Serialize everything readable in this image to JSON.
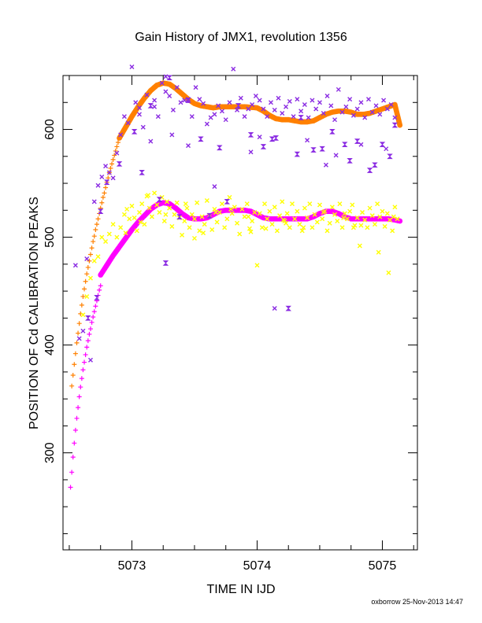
{
  "chart_data": {
    "type": "scatter",
    "title": "Gain History of JMX1, revolution 1356",
    "xlabel": "TIME IN IJD",
    "ylabel": "POSITION OF Cd CALIBRATION PEAKS",
    "footer": "oxborrow 25-Nov-2013 14:47",
    "xlim": [
      5072.45,
      5075.28
    ],
    "ylim": [
      210,
      650
    ],
    "x_ticks": [
      5073,
      5074,
      5075
    ],
    "x_tick_labels": [
      "5073",
      "5074",
      "5075"
    ],
    "y_ticks": [
      300,
      400,
      500,
      600
    ],
    "y_tick_labels": [
      "300",
      "400",
      "500",
      "600"
    ],
    "grid": false,
    "legend": "none",
    "series": [
      {
        "color": "#ff8000",
        "marker": "plus",
        "x": [
          5072.52,
          5072.53,
          5072.54,
          5072.55,
          5072.56,
          5072.57,
          5072.58,
          5072.59,
          5072.6,
          5072.61,
          5072.62,
          5072.63,
          5072.64,
          5072.65,
          5072.66,
          5072.67,
          5072.68,
          5072.69,
          5072.7,
          5072.71,
          5072.72,
          5072.73,
          5072.74,
          5072.75,
          5072.76,
          5072.77,
          5072.78,
          5072.79,
          5072.8,
          5072.81,
          5072.82,
          5072.83,
          5072.84,
          5072.85,
          5072.86,
          5072.87,
          5072.88,
          5072.89,
          5072.9
        ],
        "values": [
          362,
          372,
          382,
          392,
          402,
          411,
          420,
          429,
          437,
          445,
          452,
          459,
          466,
          472,
          478,
          484,
          490,
          496,
          501,
          507,
          512,
          517,
          522,
          527,
          532,
          537,
          541,
          546,
          551,
          555,
          560,
          564,
          568,
          572,
          576,
          580,
          584,
          588,
          592
        ]
      },
      {
        "color": "#ff8000",
        "marker": "dot",
        "x": [
          5072.9,
          5072.95,
          5073.0,
          5073.05,
          5073.1,
          5073.15,
          5073.2,
          5073.25,
          5073.3,
          5073.35,
          5073.4,
          5073.45,
          5073.5,
          5073.55,
          5073.6,
          5073.65,
          5073.7,
          5073.8,
          5073.9,
          5074.0,
          5074.05,
          5074.1,
          5074.15,
          5074.2,
          5074.25,
          5074.3,
          5074.35,
          5074.4,
          5074.45,
          5074.5,
          5074.55,
          5074.6,
          5074.65,
          5074.7,
          5074.75,
          5074.8,
          5074.85,
          5074.9,
          5074.95,
          5075.0,
          5075.05,
          5075.1,
          5075.14
        ],
        "values": [
          592,
          602,
          612,
          621,
          629,
          636,
          641,
          643,
          642,
          638,
          633,
          628,
          624,
          622,
          621,
          620,
          621,
          621,
          621,
          620,
          617,
          613,
          610,
          609,
          609,
          608,
          607,
          607,
          608,
          611,
          614,
          616,
          617,
          617,
          616,
          614,
          614,
          615,
          617,
          619,
          621,
          623,
          604
        ]
      },
      {
        "color": "#ff00ff",
        "marker": "plus",
        "x": [
          5072.51,
          5072.52,
          5072.53,
          5072.54,
          5072.55,
          5072.56,
          5072.57,
          5072.58,
          5072.59,
          5072.6,
          5072.61,
          5072.62,
          5072.63,
          5072.64,
          5072.65,
          5072.66,
          5072.67,
          5072.68,
          5072.69,
          5072.7,
          5072.71,
          5072.72,
          5072.73,
          5072.74,
          5072.75
        ],
        "values": [
          268,
          282,
          296,
          309,
          321,
          332,
          342,
          352,
          361,
          369,
          377,
          384,
          391,
          398,
          404,
          410,
          415,
          421,
          426,
          431,
          436,
          441,
          446,
          451,
          455
        ]
      },
      {
        "color": "#ff00ff",
        "marker": "dot",
        "x": [
          5072.75,
          5072.8,
          5072.85,
          5072.9,
          5072.95,
          5073.0,
          5073.05,
          5073.1,
          5073.15,
          5073.2,
          5073.25,
          5073.3,
          5073.35,
          5073.4,
          5073.45,
          5073.5,
          5073.55,
          5073.6,
          5073.65,
          5073.7,
          5073.75,
          5073.8,
          5073.85,
          5073.9,
          5073.95,
          5074.0,
          5074.05,
          5074.1,
          5074.15,
          5074.2,
          5074.25,
          5074.3,
          5074.35,
          5074.4,
          5074.45,
          5074.5,
          5074.55,
          5074.6,
          5074.65,
          5074.7,
          5074.75,
          5074.8,
          5074.85,
          5074.9,
          5074.95,
          5075.0,
          5075.05,
          5075.1,
          5075.14
        ],
        "values": [
          465,
          474,
          483,
          491,
          499,
          507,
          514,
          520,
          526,
          530,
          532,
          531,
          527,
          522,
          518,
          517,
          517,
          518,
          521,
          524,
          525,
          525,
          525,
          525,
          524,
          521,
          518,
          517,
          517,
          517,
          517,
          517,
          517,
          517,
          519,
          522,
          524,
          524,
          522,
          519,
          517,
          517,
          517,
          517,
          517,
          517,
          517,
          516,
          515
        ]
      },
      {
        "color": "#ffff00",
        "marker": "cross",
        "x": [
          5072.61,
          5072.64,
          5072.67,
          5072.7,
          5072.73,
          5072.76,
          5072.79,
          5072.82,
          5072.85,
          5072.88,
          5072.91,
          5072.94,
          5072.96,
          5072.98,
          5073.0,
          5073.02,
          5073.04,
          5073.06,
          5073.08,
          5073.1,
          5073.12,
          5073.14,
          5073.16,
          5073.18,
          5073.2,
          5073.22,
          5073.24,
          5073.26,
          5073.28,
          5073.3,
          5073.32,
          5073.34,
          5073.36,
          5073.38,
          5073.4,
          5073.42,
          5073.44,
          5073.46,
          5073.48,
          5073.5,
          5073.52,
          5073.54,
          5073.56,
          5073.58,
          5073.6,
          5073.62,
          5073.64,
          5073.66,
          5073.68,
          5073.7,
          5073.72,
          5073.74,
          5073.76,
          5073.78,
          5073.8,
          5073.82,
          5073.84,
          5073.86,
          5073.88,
          5073.9,
          5073.92,
          5073.94,
          5073.96,
          5073.98,
          5074.0,
          5074.02,
          5074.04,
          5074.06,
          5074.08,
          5074.1,
          5074.12,
          5074.14,
          5074.16,
          5074.18,
          5074.2,
          5074.22,
          5074.24,
          5074.26,
          5074.28,
          5074.3,
          5074.32,
          5074.34,
          5074.36,
          5074.38,
          5074.4,
          5074.42,
          5074.44,
          5074.46,
          5074.48,
          5074.5,
          5074.52,
          5074.54,
          5074.56,
          5074.58,
          5074.6,
          5074.62,
          5074.64,
          5074.66,
          5074.68,
          5074.7,
          5074.72,
          5074.74,
          5074.76,
          5074.78,
          5074.8,
          5074.82,
          5074.84,
          5074.86,
          5074.88,
          5074.9,
          5074.92,
          5074.94,
          5074.96,
          5074.98,
          5075.0,
          5075.02,
          5075.04,
          5075.06,
          5075.08,
          5075.1,
          5075.12,
          5072.95,
          5073.07,
          5073.13,
          5073.27,
          5073.43,
          5073.57,
          5073.67,
          5073.79,
          5073.93,
          5074.07,
          5074.21,
          5074.37,
          5074.53,
          5074.69,
          5074.83,
          5074.97,
          5075.09,
          5073.3,
          5073.5,
          5073.95,
          5074.23,
          5074.77,
          5075.05
        ],
        "values": [
          428,
          445,
          462,
          478,
          482,
          500,
          496,
          503,
          512,
          500,
          509,
          521,
          526,
          517,
          529,
          518,
          506,
          523,
          531,
          512,
          538,
          527,
          519,
          541,
          530,
          523,
          537,
          515,
          533,
          527,
          510,
          521,
          532,
          518,
          502,
          515,
          527,
          509,
          521,
          517,
          532,
          506,
          519,
          512,
          534,
          520,
          507,
          526,
          514,
          523,
          531,
          509,
          517,
          537,
          522,
          528,
          513,
          503,
          526,
          519,
          531,
          508,
          515,
          523,
          474,
          522,
          509,
          531,
          517,
          524,
          512,
          528,
          506,
          520,
          533,
          515,
          522,
          509,
          531,
          517,
          524,
          512,
          506,
          527,
          518,
          531,
          509,
          521,
          514,
          530,
          517,
          524,
          506,
          513,
          528,
          521,
          515,
          531,
          509,
          522,
          517,
          524,
          530,
          511,
          518,
          492,
          523,
          516,
          509,
          527,
          520,
          512,
          531,
          519,
          524,
          510,
          522,
          516,
          506,
          528,
          517,
          504,
          514,
          539,
          521,
          531,
          504,
          523,
          526,
          519,
          508,
          516,
          509,
          523,
          518,
          511,
          486,
          519,
          527,
          499,
          505,
          513,
          509,
          467
        ]
      },
      {
        "color": "#8a2be2",
        "marker": "cross",
        "x": [
          5072.55,
          5072.58,
          5072.61,
          5072.64,
          5072.67,
          5072.7,
          5072.73,
          5072.76,
          5072.79,
          5072.82,
          5072.85,
          5072.88,
          5072.91,
          5072.94,
          5072.97,
          5073.0,
          5073.03,
          5073.06,
          5073.09,
          5073.12,
          5073.15,
          5073.18,
          5073.21,
          5073.24,
          5073.27,
          5073.3,
          5073.33,
          5073.36,
          5073.39,
          5073.42,
          5073.45,
          5073.48,
          5073.51,
          5073.54,
          5073.57,
          5073.6,
          5073.63,
          5073.66,
          5073.69,
          5073.72,
          5073.75,
          5073.78,
          5073.81,
          5073.84,
          5073.87,
          5073.9,
          5073.93,
          5073.96,
          5073.99,
          5074.02,
          5074.05,
          5074.08,
          5074.11,
          5074.14,
          5074.17,
          5074.2,
          5074.23,
          5074.26,
          5074.29,
          5074.32,
          5074.35,
          5074.38,
          5074.41,
          5074.44,
          5074.47,
          5074.5,
          5074.53,
          5074.56,
          5074.59,
          5074.62,
          5074.65,
          5074.68,
          5074.71,
          5074.74,
          5074.77,
          5074.8,
          5074.83,
          5074.86,
          5074.89,
          5074.92,
          5074.95,
          5074.98,
          5075.01,
          5075.04,
          5075.07,
          5075.1,
          5073.27,
          5073.18,
          5073.06,
          5073.32,
          5073.45,
          5073.66,
          5074.14,
          5074.55,
          5074.83,
          5075.03,
          5073.95,
          5074.02,
          5074.4,
          5074.63
        ],
        "values": [
          474,
          406,
          413,
          480,
          386,
          533,
          548,
          556,
          566,
          560,
          555,
          578,
          595,
          612,
          606,
          658,
          625,
          614,
          602,
          632,
          589,
          627,
          612,
          643,
          635,
          631,
          618,
          639,
          625,
          627,
          628,
          612,
          639,
          628,
          624,
          605,
          611,
          614,
          622,
          617,
          609,
          625,
          656,
          618,
          629,
          612,
          619,
          623,
          631,
          627,
          619,
          612,
          625,
          618,
          629,
          615,
          621,
          626,
          612,
          628,
          617,
          623,
          611,
          627,
          619,
          625,
          615,
          631,
          622,
          609,
          637,
          616,
          621,
          628,
          613,
          619,
          625,
          611,
          628,
          616,
          622,
          614,
          627,
          619,
          623,
          611,
          649,
          621,
          620,
          595,
          585,
          547,
          434,
          567,
          586,
          582,
          579,
          593,
          590,
          576
        ]
      },
      {
        "color": "#8a2be2",
        "marker": "bowtie",
        "x": [
          5072.75,
          5072.8,
          5072.9,
          5073.02,
          5073.15,
          5073.3,
          5073.45,
          5073.55,
          5073.7,
          5073.85,
          5073.95,
          5074.05,
          5074.15,
          5074.25,
          5074.35,
          5074.45,
          5074.6,
          5074.7,
          5074.8,
          5074.9,
          5075.0,
          5075.06,
          5075.1,
          5073.22,
          5073.38,
          5073.62,
          5073.76,
          5074.12,
          5074.32,
          5074.52,
          5074.74,
          5074.94,
          5072.65,
          5072.72,
          5073.08,
          5073.27
        ],
        "values": [
          524,
          551,
          568,
          598,
          622,
          648,
          627,
          591,
          583,
          622,
          595,
          584,
          592,
          434,
          611,
          581,
          598,
          586,
          589,
          562,
          586,
          575,
          604,
          535,
          519,
          520,
          533,
          591,
          577,
          582,
          571,
          567,
          425,
          444,
          560,
          476
        ]
      }
    ]
  }
}
